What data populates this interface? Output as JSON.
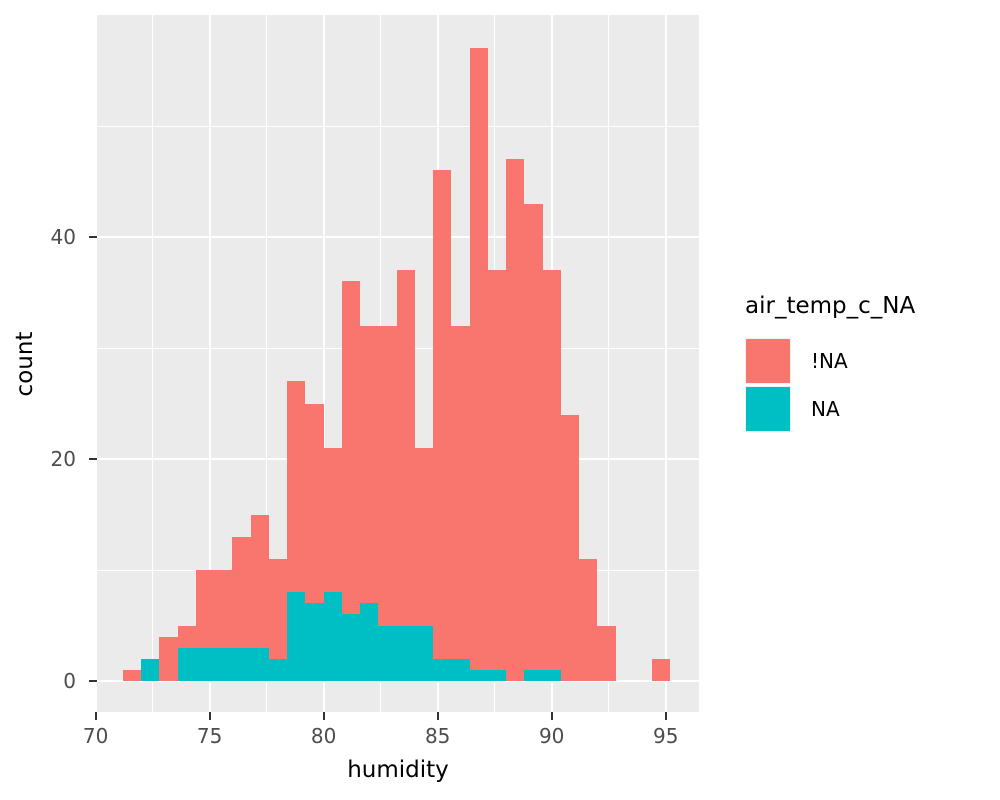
{
  "chart_data": {
    "type": "bar",
    "subtype": "stacked-histogram",
    "title": "",
    "xlabel": "humidity",
    "ylabel": "count",
    "xlim": [
      70.06,
      96.46
    ],
    "ylim": [
      -2.79,
      60.0
    ],
    "x_major_ticks": [
      70,
      75,
      80,
      85,
      90,
      95
    ],
    "x_minor_ticks": [
      72.5,
      77.5,
      82.5,
      87.5,
      92.5
    ],
    "y_major_ticks": [
      0,
      20,
      40
    ],
    "y_minor_ticks": [
      10,
      30,
      50
    ],
    "x_tick_labels": [
      "70",
      "75",
      "80",
      "85",
      "90",
      "95"
    ],
    "y_tick_labels": [
      "0",
      "20",
      "40"
    ],
    "binwidth": 0.8,
    "series_order_bottom_to_top": [
      "NA",
      "!NA"
    ],
    "bins": [
      {
        "x0": 71.2,
        "x1": 72.0,
        "not_na": 1,
        "na": 0
      },
      {
        "x0": 72.0,
        "x1": 72.8,
        "not_na": 0,
        "na": 2
      },
      {
        "x0": 72.8,
        "x1": 73.6,
        "not_na": 4,
        "na": 0
      },
      {
        "x0": 73.6,
        "x1": 74.4,
        "not_na": 2,
        "na": 3
      },
      {
        "x0": 74.4,
        "x1": 75.2,
        "not_na": 7,
        "na": 3
      },
      {
        "x0": 75.2,
        "x1": 76.0,
        "not_na": 7,
        "na": 3
      },
      {
        "x0": 76.0,
        "x1": 76.8,
        "not_na": 10,
        "na": 3
      },
      {
        "x0": 76.8,
        "x1": 77.6,
        "not_na": 12,
        "na": 3
      },
      {
        "x0": 77.6,
        "x1": 78.4,
        "not_na": 9,
        "na": 2
      },
      {
        "x0": 78.4,
        "x1": 79.2,
        "not_na": 19,
        "na": 8
      },
      {
        "x0": 79.2,
        "x1": 80.0,
        "not_na": 18,
        "na": 7
      },
      {
        "x0": 80.0,
        "x1": 80.8,
        "not_na": 13,
        "na": 8
      },
      {
        "x0": 80.8,
        "x1": 81.6,
        "not_na": 30,
        "na": 6
      },
      {
        "x0": 81.6,
        "x1": 82.4,
        "not_na": 25,
        "na": 7
      },
      {
        "x0": 82.4,
        "x1": 83.2,
        "not_na": 27,
        "na": 5
      },
      {
        "x0": 83.2,
        "x1": 84.0,
        "not_na": 32,
        "na": 5
      },
      {
        "x0": 84.0,
        "x1": 84.8,
        "not_na": 16,
        "na": 5
      },
      {
        "x0": 84.8,
        "x1": 85.6,
        "not_na": 44,
        "na": 2
      },
      {
        "x0": 85.6,
        "x1": 86.4,
        "not_na": 30,
        "na": 2
      },
      {
        "x0": 86.4,
        "x1": 87.2,
        "not_na": 56,
        "na": 1
      },
      {
        "x0": 87.2,
        "x1": 88.0,
        "not_na": 36,
        "na": 1
      },
      {
        "x0": 88.0,
        "x1": 88.8,
        "not_na": 47,
        "na": 0
      },
      {
        "x0": 88.8,
        "x1": 89.6,
        "not_na": 42,
        "na": 1
      },
      {
        "x0": 89.6,
        "x1": 90.4,
        "not_na": 36,
        "na": 1
      },
      {
        "x0": 90.4,
        "x1": 91.2,
        "not_na": 24,
        "na": 0
      },
      {
        "x0": 91.2,
        "x1": 92.0,
        "not_na": 11,
        "na": 0
      },
      {
        "x0": 92.0,
        "x1": 92.8,
        "not_na": 5,
        "na": 0
      },
      {
        "x0": 92.8,
        "x1": 93.6,
        "not_na": 0,
        "na": 0
      },
      {
        "x0": 93.6,
        "x1": 94.4,
        "not_na": 0,
        "na": 0
      },
      {
        "x0": 94.4,
        "x1": 95.2,
        "not_na": 2,
        "na": 0
      }
    ],
    "legend_position": "right",
    "grid": true
  },
  "legend": {
    "title": "air_temp_c_NA",
    "entries": [
      {
        "label": "!NA",
        "color": "#F8766D",
        "series": "not_na"
      },
      {
        "label": "NA",
        "color": "#00BFC4",
        "series": "na"
      }
    ]
  },
  "colors": {
    "panel_background": "#EBEBEB",
    "gridline": "#FFFFFF",
    "tick_mark": "#333333",
    "tick_label": "#4D4D4D",
    "axis_title": "#000000",
    "fill_not_na": "#F8766D",
    "fill_na": "#00BFC4"
  }
}
